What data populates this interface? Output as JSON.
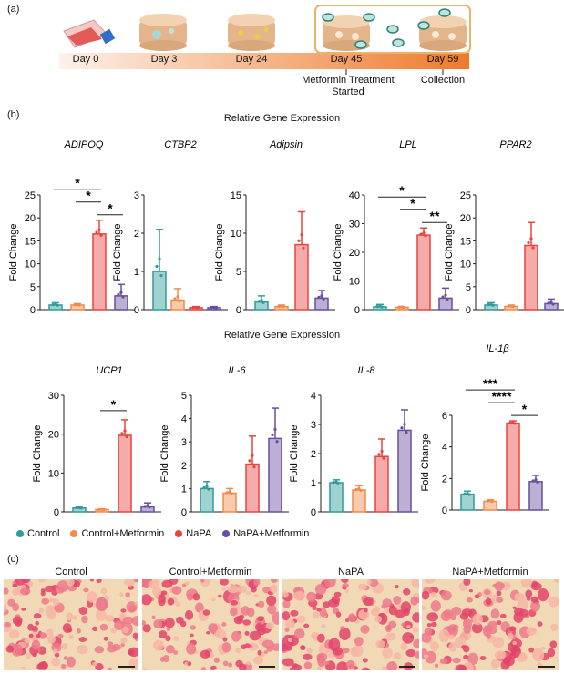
{
  "panel_a": {
    "label": "(a)",
    "days": [
      "Day 0",
      "Day 3",
      "Day 24",
      "Day 45",
      "Day 59"
    ],
    "annotation_treatment": "Metformin Treatment Started",
    "annotation_collection": "Collection"
  },
  "panel_b": {
    "label": "(b)",
    "title_row1": "Relative Gene Expression",
    "title_row2": "Relative Gene Expression"
  },
  "colors": {
    "Control": "#2f9c9a",
    "Control+Metformin": "#f28b4a",
    "NaPA": "#e8443f",
    "NaPA+Metformin": "#6a4ea0"
  },
  "legend": [
    "Control",
    "Control+Metformin",
    "NaPA",
    "NaPA+Metformin"
  ],
  "chart_data": [
    {
      "type": "bar",
      "title": "ADIPOQ",
      "ylabel": "Fold Change",
      "ylim": [
        0,
        25
      ],
      "ticks": [
        0,
        5,
        10,
        15,
        20,
        25
      ],
      "categories": [
        "Control",
        "Control+Metformin",
        "NaPA",
        "NaPA+Metformin"
      ],
      "values": [
        1.0,
        1.0,
        16.5,
        3.0
      ],
      "errors": [
        0.5,
        0.3,
        3.0,
        2.5
      ],
      "significance": [
        {
          "from": 0,
          "to": 2,
          "label": "*"
        },
        {
          "from": 1,
          "to": 2,
          "label": "*"
        },
        {
          "from": 2,
          "to": 3,
          "label": "*"
        }
      ]
    },
    {
      "type": "bar",
      "title": "CTBP2",
      "ylabel": "Fold Change",
      "ylim": [
        0,
        3
      ],
      "ticks": [
        0,
        1,
        2,
        3
      ],
      "categories": [
        "Control",
        "Control+Metformin",
        "NaPA",
        "NaPA+Metformin"
      ],
      "values": [
        1.0,
        0.25,
        0.05,
        0.05
      ],
      "errors": [
        1.1,
        0.3,
        0.03,
        0.03
      ],
      "significance": []
    },
    {
      "type": "bar",
      "title": "Adipsin",
      "ylabel": "Fold Change",
      "ylim": [
        0,
        15
      ],
      "ticks": [
        0,
        5,
        10,
        15
      ],
      "categories": [
        "Control",
        "Control+Metformin",
        "NaPA",
        "NaPA+Metformin"
      ],
      "values": [
        1.0,
        0.4,
        8.5,
        1.5
      ],
      "errors": [
        0.8,
        0.2,
        4.3,
        1.0
      ],
      "significance": []
    },
    {
      "type": "bar",
      "title": "LPL",
      "ylabel": "Fold Change",
      "ylim": [
        0,
        40
      ],
      "ticks": [
        0,
        10,
        20,
        30,
        40
      ],
      "categories": [
        "Control",
        "Control+Metformin",
        "NaPA",
        "NaPA+Metformin"
      ],
      "values": [
        1.0,
        0.8,
        26.0,
        4.0
      ],
      "errors": [
        0.8,
        0.3,
        2.5,
        3.5
      ],
      "significance": [
        {
          "from": 0,
          "to": 2,
          "label": "*"
        },
        {
          "from": 1,
          "to": 2,
          "label": "*"
        },
        {
          "from": 2,
          "to": 3,
          "label": "**"
        }
      ]
    },
    {
      "type": "bar",
      "title": "PPAR2",
      "ylabel": "Fold Change",
      "ylim": [
        0,
        25
      ],
      "ticks": [
        0,
        5,
        10,
        15,
        20,
        25
      ],
      "categories": [
        "Control",
        "Control+Metformin",
        "NaPA",
        "NaPA+Metformin"
      ],
      "values": [
        1.0,
        0.7,
        14.0,
        1.3
      ],
      "errors": [
        0.5,
        0.3,
        5.0,
        1.0
      ],
      "significance": []
    },
    {
      "type": "bar",
      "title": "UCP1",
      "ylabel": "Fold Change",
      "ylim": [
        0,
        30
      ],
      "ticks": [
        0,
        10,
        20,
        30
      ],
      "categories": [
        "Control",
        "Control+Metformin",
        "NaPA",
        "NaPA+Metformin"
      ],
      "values": [
        1.0,
        0.6,
        19.7,
        1.3
      ],
      "errors": [
        0.2,
        0.1,
        4.0,
        1.0
      ],
      "significance": [
        {
          "from": 1,
          "to": 2,
          "label": "*"
        }
      ]
    },
    {
      "type": "bar",
      "title": "IL-6",
      "ylabel": "Fold Change",
      "ylim": [
        0,
        5
      ],
      "ticks": [
        0,
        1,
        2,
        3,
        4,
        5
      ],
      "categories": [
        "Control",
        "Control+Metformin",
        "NaPA",
        "NaPA+Metformin"
      ],
      "values": [
        1.0,
        0.8,
        2.05,
        3.15
      ],
      "errors": [
        0.3,
        0.2,
        1.2,
        1.3
      ],
      "significance": []
    },
    {
      "type": "bar",
      "title": "IL-8",
      "ylabel": "Fold Change",
      "ylim": [
        0,
        4
      ],
      "ticks": [
        0,
        1,
        2,
        3,
        4
      ],
      "categories": [
        "Control",
        "Control+Metformin",
        "NaPA",
        "NaPA+Metformin"
      ],
      "values": [
        1.0,
        0.75,
        1.9,
        2.8
      ],
      "errors": [
        0.1,
        0.15,
        0.6,
        0.7
      ],
      "significance": []
    },
    {
      "type": "bar",
      "title": "IL-1β",
      "ylabel": "Fold Change",
      "ylim": [
        0,
        6
      ],
      "ticks": [
        0,
        2,
        4,
        6
      ],
      "categories": [
        "Control",
        "Control+Metformin",
        "NaPA",
        "NaPA+Metformin"
      ],
      "values": [
        1.0,
        0.55,
        5.5,
        1.8
      ],
      "errors": [
        0.2,
        0.1,
        0.15,
        0.4
      ],
      "significance": [
        {
          "from": 0,
          "to": 2,
          "label": "***"
        },
        {
          "from": 1,
          "to": 2,
          "label": "****"
        },
        {
          "from": 2,
          "to": 3,
          "label": "*"
        }
      ]
    }
  ],
  "panel_c": {
    "label": "(c)",
    "conditions": [
      "Control",
      "Control+Metformin",
      "NaPA",
      "NaPA+Metformin"
    ]
  }
}
